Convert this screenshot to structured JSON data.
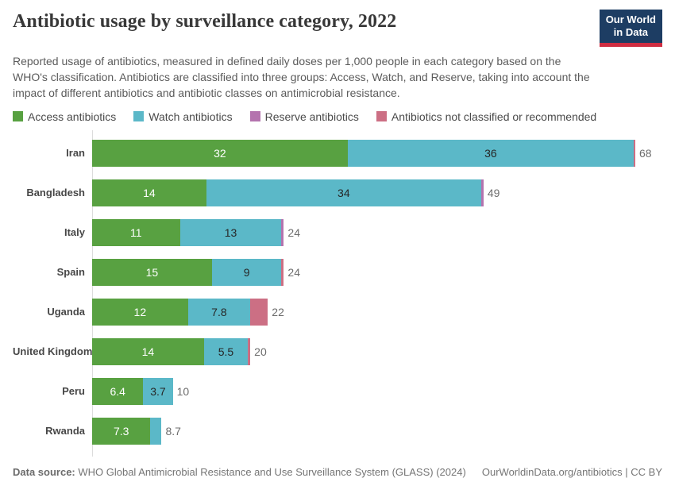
{
  "header": {
    "title": "Antibiotic usage by surveillance category, 2022",
    "subtitle": "Reported usage of antibiotics, measured in defined daily doses per 1,000 people in each category based on the WHO's classification. Antibiotics are classified into three groups: Access, Watch, and Reserve, taking into account the impact of different antibiotics and antibiotic classes on antimicrobial resistance.",
    "logo": {
      "line1": "Our World",
      "line2": "in Data"
    }
  },
  "colors": {
    "access_green": "#58a141",
    "watch_teal": "#5bb8c8",
    "reserve_purple": "#b473ae",
    "not_classified_pink": "#cc6f84",
    "axis_gray": "#dcdcdc",
    "logo_navy": "#1d3d63",
    "logo_red": "#cf2d41"
  },
  "chart_data": {
    "type": "bar",
    "orientation": "horizontal",
    "stacked": true,
    "title": "Antibiotic usage by surveillance category, 2022",
    "xlabel": "",
    "ylabel": "",
    "xmax": 68,
    "grid": false,
    "legend_position": "top",
    "categories": [
      "Iran",
      "Bangladesh",
      "Italy",
      "Spain",
      "Uganda",
      "United Kingdom",
      "Peru",
      "Rwanda"
    ],
    "series": [
      {
        "name": "Access antibiotics",
        "color": "#58a141",
        "label_color": "#ffffff",
        "values": [
          32,
          14.3,
          11,
          15,
          12,
          14,
          6.4,
          7.3
        ],
        "labels": [
          "32",
          "14",
          "11",
          "15",
          "12",
          "14",
          "6.4",
          "7.3"
        ]
      },
      {
        "name": "Watch antibiotics",
        "color": "#5bb8c8",
        "label_color": "#262626",
        "values": [
          35.8,
          34.4,
          12.7,
          8.7,
          7.8,
          5.5,
          3.7,
          1.4
        ],
        "labels": [
          "36",
          "34",
          "13",
          "9",
          "7.8",
          "5.5",
          "3.7",
          ""
        ]
      },
      {
        "name": "Reserve antibiotics",
        "color": "#b473ae",
        "label_color": "#262626",
        "values": [
          0,
          0.3,
          0.3,
          0,
          0,
          0,
          0,
          0
        ],
        "labels": [
          "",
          "",
          "",
          "",
          "",
          "",
          "",
          ""
        ]
      },
      {
        "name": "Antibiotics not classified or recommended",
        "color": "#cc6f84",
        "label_color": "#262626",
        "values": [
          0.2,
          0,
          0,
          0.3,
          2.2,
          0.3,
          0,
          0
        ],
        "labels": [
          "",
          "",
          "",
          "",
          "",
          "",
          "",
          ""
        ]
      }
    ],
    "totals": [
      "68",
      "49",
      "24",
      "24",
      "22",
      "20",
      "10",
      "8.7"
    ]
  },
  "footer": {
    "source_label": "Data source:",
    "source_text": " WHO Global Antimicrobial Resistance and Use Surveillance System (GLASS) (2024)",
    "right_text": "OurWorldinData.org/antibiotics | CC BY"
  }
}
